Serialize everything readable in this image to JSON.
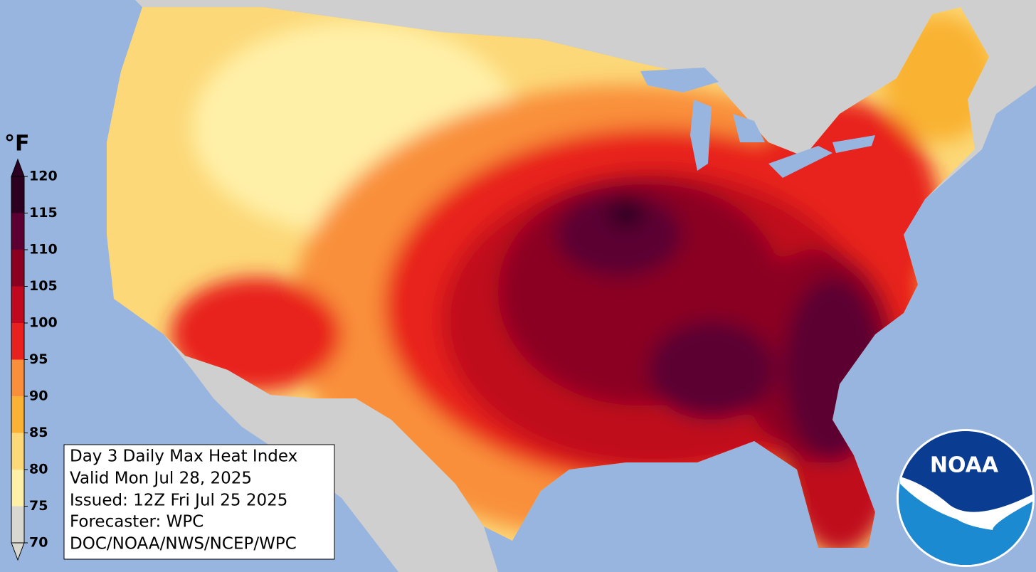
{
  "colorbar": {
    "unit": "°F",
    "ticks": [
      70,
      75,
      80,
      85,
      90,
      95,
      100,
      105,
      110,
      115,
      120
    ],
    "colors": [
      "#d8d8d0",
      "#fff0a8",
      "#fcd878",
      "#f9b233",
      "#f98f3a",
      "#e8201e",
      "#c0081e",
      "#8b0020",
      "#5c0033",
      "#2c0020"
    ]
  },
  "info_box": {
    "lines": [
      "Day 3 Daily Max Heat Index",
      "Valid Mon Jul 28, 2025",
      "Issued: 12Z Fri Jul 25 2025",
      "Forecaster: WPC",
      "DOC/NOAA/NWS/NCEP/WPC"
    ]
  },
  "logo": {
    "label": "NOAA"
  }
}
